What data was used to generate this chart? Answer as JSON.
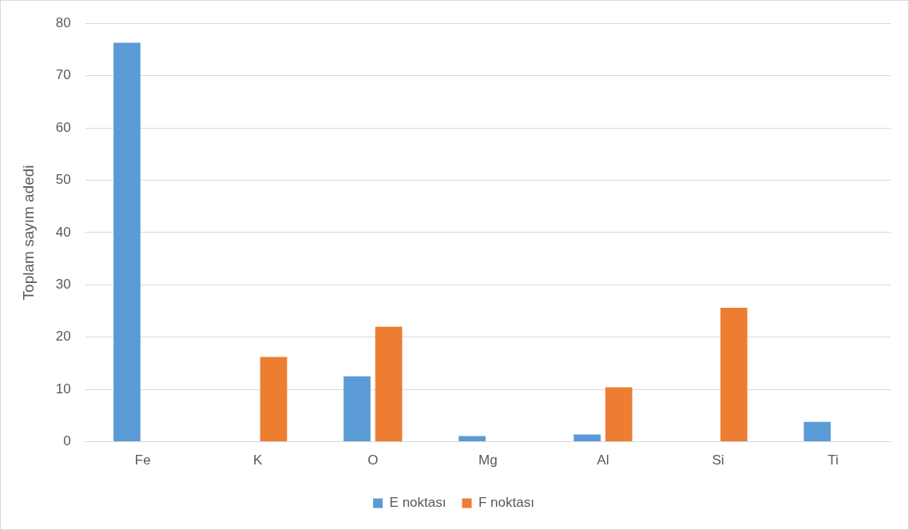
{
  "chart_data": {
    "type": "bar",
    "ylabel": "Toplam sayım adedi",
    "categories": [
      "Fe",
      "K",
      "O",
      "Mg",
      "Al",
      "Si",
      "Ti"
    ],
    "series": [
      {
        "name": "E noktası",
        "color": "#5b9bd5",
        "values": [
          76.3,
          0,
          12.5,
          1.1,
          1.4,
          0,
          3.8
        ]
      },
      {
        "name": "F noktası",
        "color": "#ed7d31",
        "values": [
          0,
          16.2,
          22.0,
          0,
          10.4,
          25.6,
          0
        ]
      }
    ],
    "ylim": [
      0,
      80
    ],
    "yticks": [
      0,
      10,
      20,
      30,
      40,
      50,
      60,
      70,
      80
    ],
    "grid": "y",
    "legend": "bottom"
  }
}
